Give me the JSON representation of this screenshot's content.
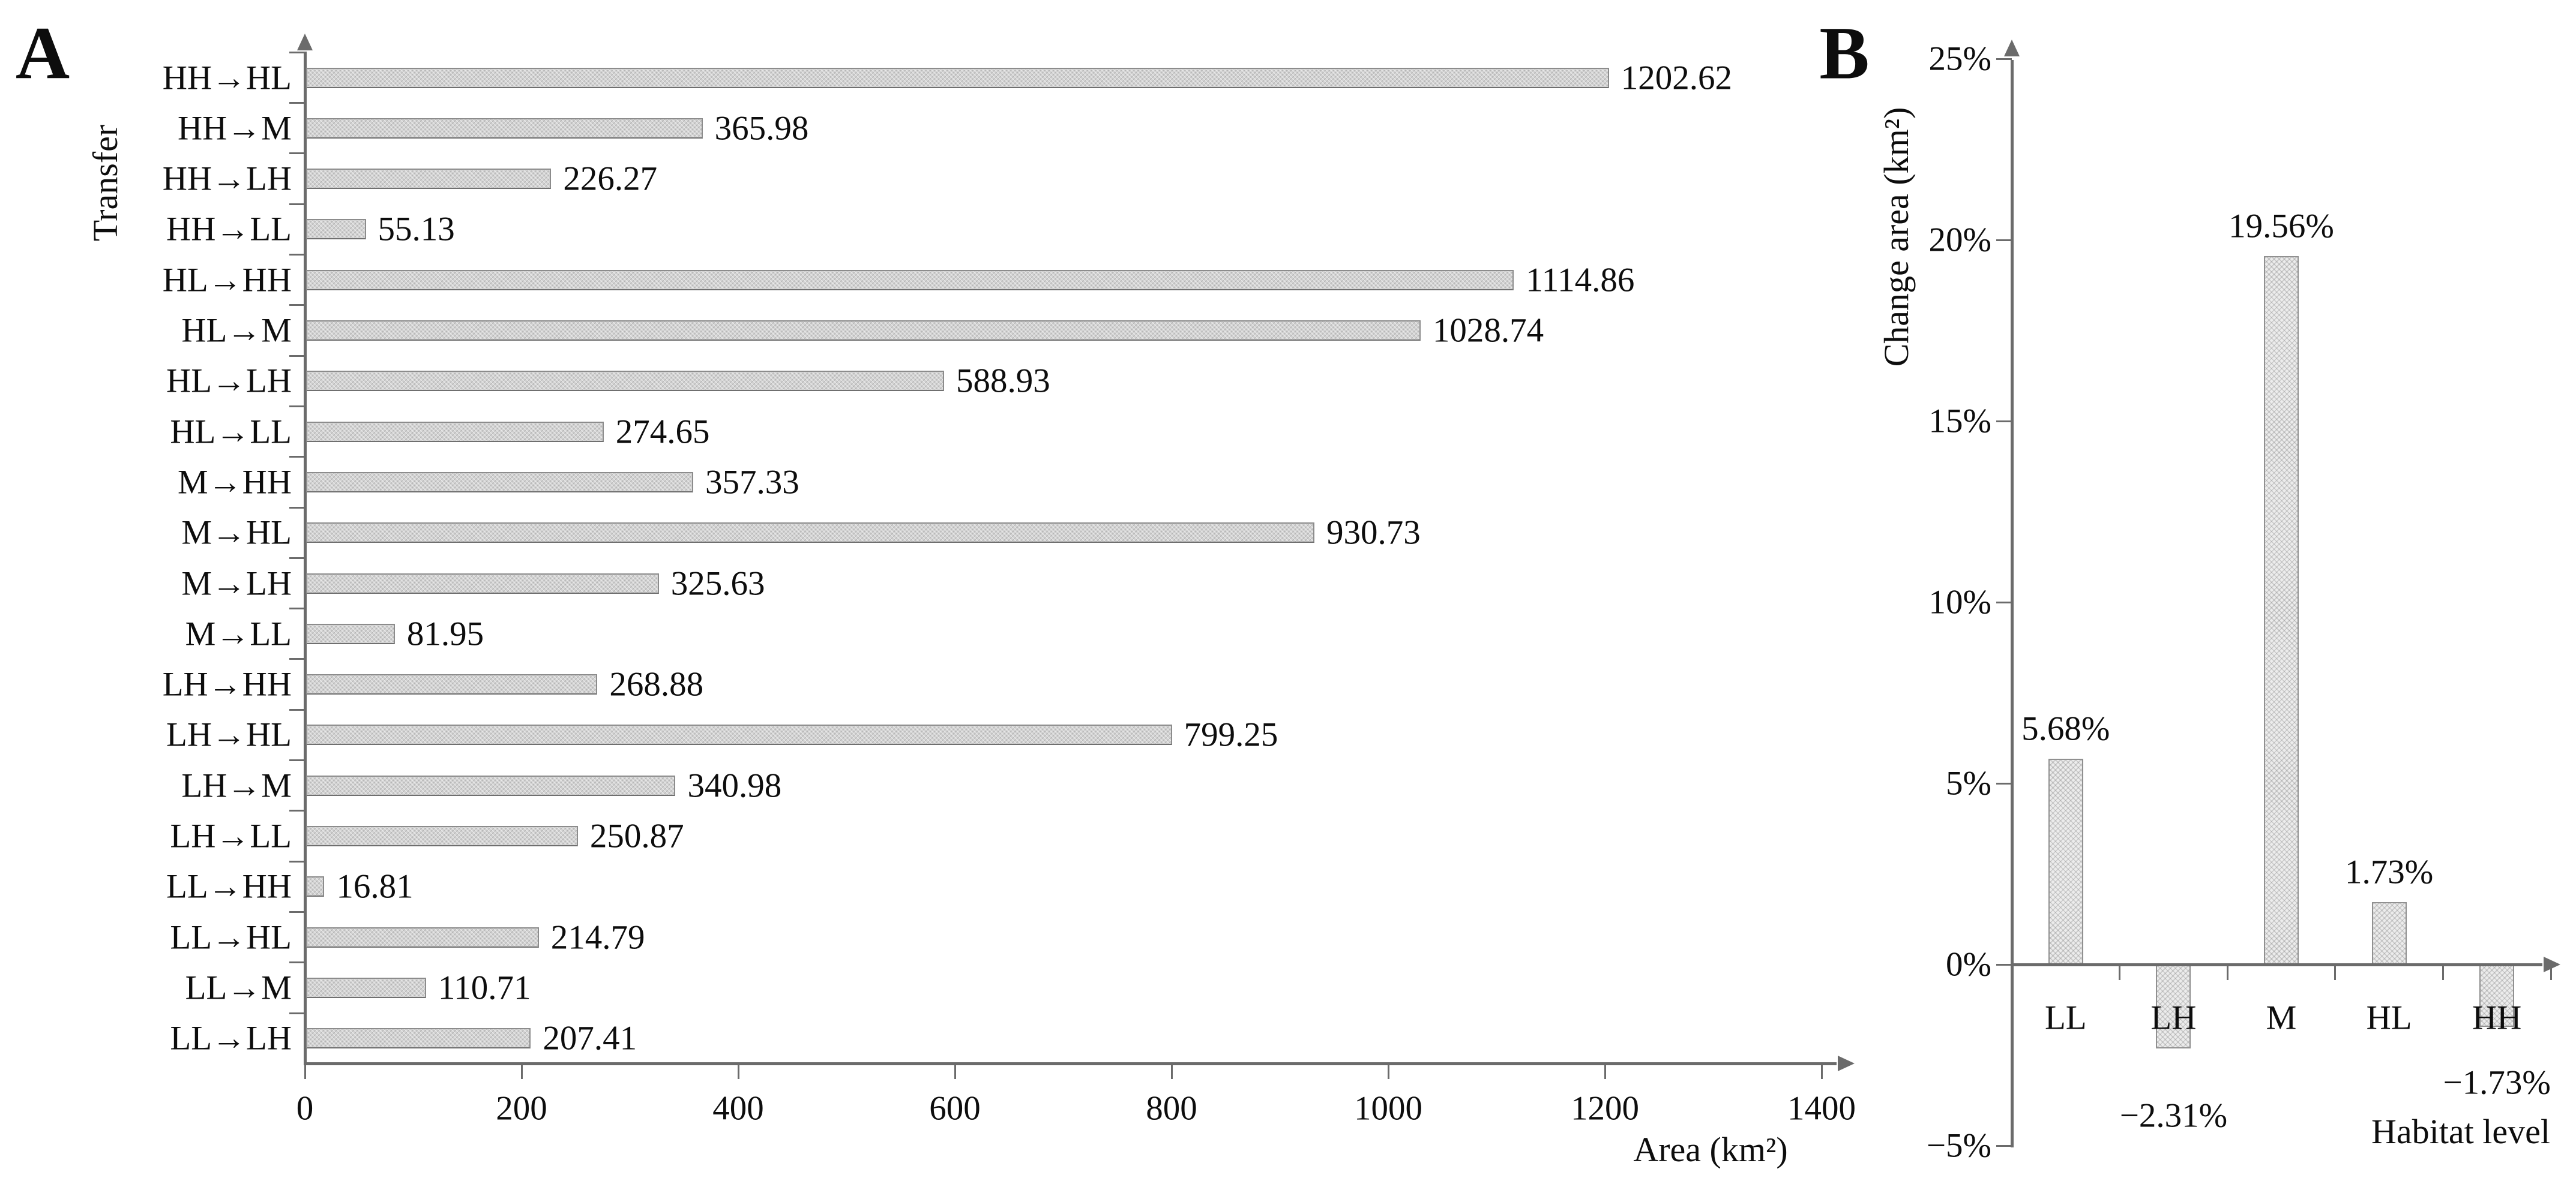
{
  "colors": {
    "bar_fill_a": "#d2d2d2",
    "bar_border_a": "#8c8c8c",
    "bar_fill_b": "#ececec",
    "bar_border_b": "#909090",
    "axis": "#6b6b6b",
    "text": "#0d0d0d"
  },
  "chart_data": [
    {
      "panel_label": "A",
      "type": "bar",
      "orientation": "horizontal",
      "title": "",
      "xlabel": "Area (km²)",
      "ylabel": "Transfer",
      "xlim": [
        0,
        1400
      ],
      "x_ticks": [
        0,
        200,
        400,
        600,
        800,
        1000,
        1200,
        1400
      ],
      "grid": false,
      "legend": "none",
      "categories": [
        "HH→HL",
        "HH→M",
        "HH→LH",
        "HH→LL",
        "HL→HH",
        "HL→M",
        "HL→LH",
        "HL→LL",
        "M→HH",
        "M→HL",
        "M→LH",
        "M→LL",
        "LH→HH",
        "LH→HL",
        "LH→M",
        "LH→LL",
        "LL→HH",
        "LL→HL",
        "LL→M",
        "LL→LH"
      ],
      "values": [
        1202.62,
        365.98,
        226.27,
        55.13,
        1114.86,
        1028.74,
        588.93,
        274.65,
        357.33,
        930.73,
        325.63,
        81.95,
        268.88,
        799.25,
        340.98,
        250.87,
        16.81,
        214.79,
        110.71,
        207.41
      ],
      "value_labels": [
        "1202.62",
        "365.98",
        "226.27",
        "55.13",
        "1114.86",
        "1028.74",
        "588.93",
        "274.65",
        "357.33",
        "930.73",
        "325.63",
        "81.95",
        "268.88",
        "799.25",
        "340.98",
        "250.87",
        "16.81",
        "214.79",
        "110.71",
        "207.41"
      ]
    },
    {
      "panel_label": "B",
      "type": "bar",
      "orientation": "vertical",
      "title": "",
      "xlabel": "Habitat level",
      "ylabel": "Change area (km²)",
      "ylim": [
        -5,
        25
      ],
      "y_tick_values": [
        25,
        20,
        15,
        10,
        5,
        0,
        -5
      ],
      "y_tick_labels": [
        "25%",
        "20%",
        "15%",
        "10%",
        "5%",
        "0%",
        "−5%"
      ],
      "grid": false,
      "legend": "none",
      "categories": [
        "LL",
        "LH",
        "M",
        "HL",
        "HH"
      ],
      "values": [
        5.68,
        -2.31,
        19.56,
        1.73,
        -1.73
      ],
      "value_labels": [
        "5.68%",
        "−2.31%",
        "19.56%",
        "1.73%",
        "−1.73%"
      ]
    }
  ]
}
